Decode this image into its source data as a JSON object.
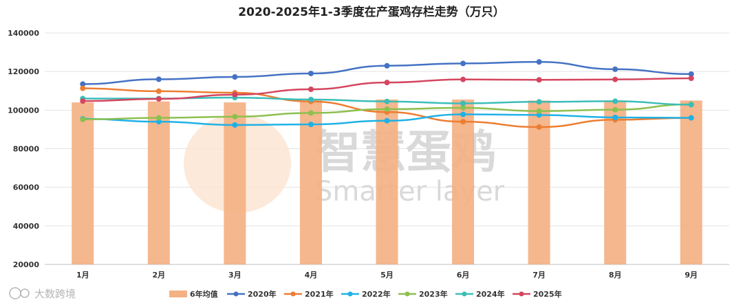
{
  "chart_data": {
    "type": "bar+line",
    "title": "2020-2025年1-3季度在产蛋鸡存栏走势（万只）",
    "categories": [
      "1月",
      "2月",
      "3月",
      "4月",
      "5月",
      "6月",
      "7月",
      "8月",
      "9月"
    ],
    "ylim": [
      20000,
      140000
    ],
    "yticks": [
      "20000",
      "40000",
      "60000",
      "80000",
      "100000",
      "120000",
      "140000"
    ],
    "ytick_values": [
      20000,
      40000,
      60000,
      80000,
      100000,
      120000,
      140000
    ],
    "grid": true,
    "legend_position": "bottom",
    "bar_series": {
      "name": "6年均值",
      "color": "#f4b183",
      "values": [
        104000,
        104500,
        104000,
        105000,
        105500,
        105500,
        105000,
        105000,
        105000
      ]
    },
    "series": [
      {
        "name": "2020年",
        "color": "#4472c4",
        "values": [
          113500,
          116000,
          117200,
          119000,
          123000,
          124200,
          125000,
          121200,
          118700
        ]
      },
      {
        "name": "2021年",
        "color": "#ed7d31",
        "values": [
          111300,
          109800,
          109000,
          104500,
          99000,
          94000,
          91200,
          95000,
          96000
        ]
      },
      {
        "name": "2022年",
        "color": "#1fb1e6",
        "values": [
          95500,
          94000,
          92300,
          92600,
          94500,
          97800,
          97500,
          96200,
          96000
        ]
      },
      {
        "name": "2023年",
        "color": "#8cc04f",
        "values": [
          95200,
          96000,
          96600,
          98500,
          100500,
          101200,
          99500,
          100200,
          103000
        ]
      },
      {
        "name": "2024年",
        "color": "#3bbdb7",
        "values": [
          106000,
          106000,
          106500,
          105500,
          104500,
          103500,
          104300,
          104600,
          102800
        ]
      },
      {
        "name": "2025年",
        "color": "#d4455f",
        "values": [
          104700,
          105800,
          108000,
          110800,
          114300,
          115900,
          115700,
          115900,
          116500
        ]
      }
    ]
  },
  "watermark": {
    "cn": "智慧蛋鸡",
    "en": "Smarter layer",
    "source": "大数跨境"
  }
}
